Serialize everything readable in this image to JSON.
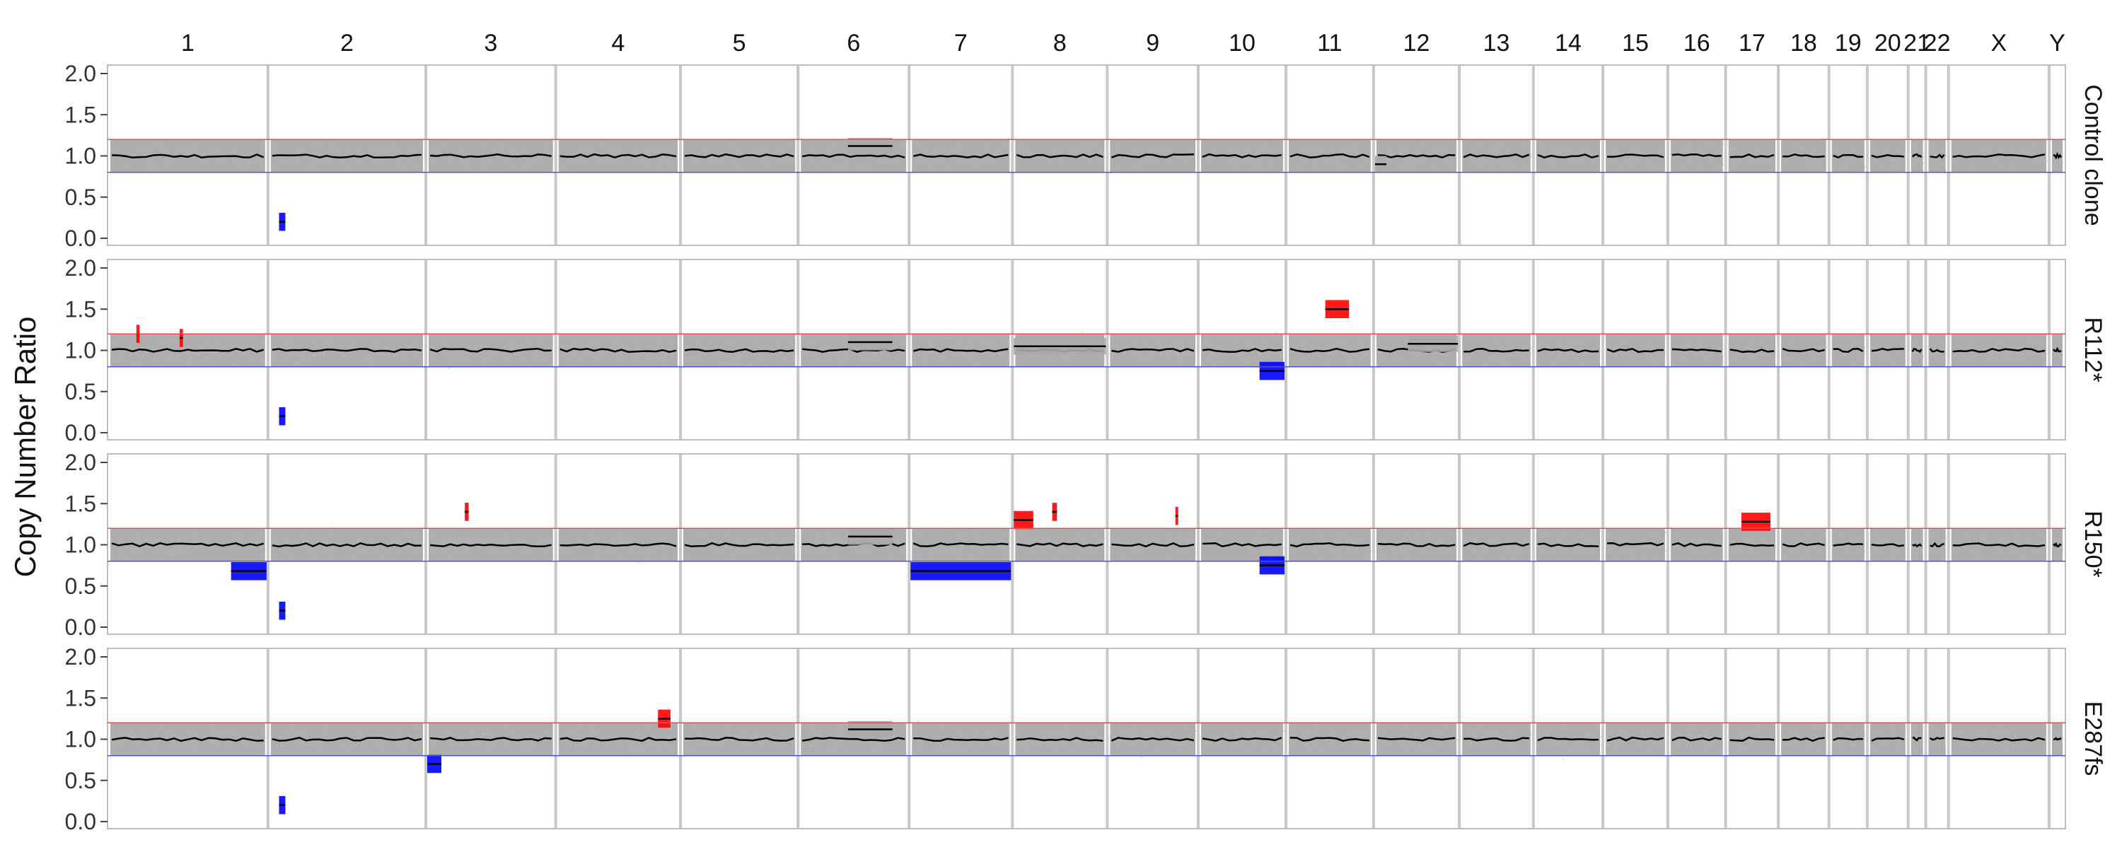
{
  "chart_data": {
    "type": "scatter",
    "ylabel": "Copy Number Ratio",
    "xlabel": "",
    "ylim": [
      0,
      2
    ],
    "yticks": [
      "0.0",
      "0.5",
      "1.0",
      "1.5",
      "2.0"
    ],
    "gain_threshold": 1.2,
    "loss_threshold": 0.8,
    "colors": {
      "gain": "#ff0000",
      "loss": "#0000ff",
      "neutral": "#aaaaaa",
      "segment": "#000000",
      "threshold_gain": "#e05050",
      "threshold_loss": "#5050e0",
      "separator": "#c8c8c8",
      "frame": "#bdbdbd"
    },
    "chromosomes": [
      {
        "label": "1",
        "bins": 247
      },
      {
        "label": "2",
        "bins": 243
      },
      {
        "label": "3",
        "bins": 200
      },
      {
        "label": "4",
        "bins": 192
      },
      {
        "label": "5",
        "bins": 181
      },
      {
        "label": "6",
        "bins": 171
      },
      {
        "label": "7",
        "bins": 159
      },
      {
        "label": "8",
        "bins": 146
      },
      {
        "label": "9",
        "bins": 140
      },
      {
        "label": "10",
        "bins": 135
      },
      {
        "label": "11",
        "bins": 135
      },
      {
        "label": "12",
        "bins": 132
      },
      {
        "label": "13",
        "bins": 114
      },
      {
        "label": "14",
        "bins": 107
      },
      {
        "label": "15",
        "bins": 100
      },
      {
        "label": "16",
        "bins": 89
      },
      {
        "label": "17",
        "bins": 81
      },
      {
        "label": "18",
        "bins": 78
      },
      {
        "label": "19",
        "bins": 59
      },
      {
        "label": "20",
        "bins": 63
      },
      {
        "label": "21",
        "bins": 27
      },
      {
        "label": "22",
        "bins": 35
      },
      {
        "label": "X",
        "bins": 155
      },
      {
        "label": "Y",
        "bins": 25
      }
    ],
    "series": [
      {
        "name": "Control clone",
        "segments": [
          {
            "chrom": "2",
            "start": 0.07,
            "end": 0.11,
            "value": 0.2,
            "type": "loss"
          },
          {
            "chrom": "6",
            "start": 0.45,
            "end": 0.85,
            "value": 1.12,
            "type": "neutral"
          },
          {
            "chrom": "12",
            "start": 0.0,
            "end": 0.15,
            "value": 0.9,
            "type": "neutral"
          }
        ]
      },
      {
        "name": "R112*",
        "segments": [
          {
            "chrom": "1",
            "start": 0.18,
            "end": 0.2,
            "value": 1.2,
            "type": "gain"
          },
          {
            "chrom": "1",
            "start": 0.45,
            "end": 0.47,
            "value": 1.15,
            "type": "gain"
          },
          {
            "chrom": "2",
            "start": 0.07,
            "end": 0.11,
            "value": 0.2,
            "type": "loss"
          },
          {
            "chrom": "6",
            "start": 0.45,
            "end": 0.85,
            "value": 1.1,
            "type": "neutral"
          },
          {
            "chrom": "8",
            "start": 0.0,
            "end": 1.0,
            "value": 1.05,
            "type": "neutral"
          },
          {
            "chrom": "10",
            "start": 0.7,
            "end": 1.0,
            "value": 0.75,
            "type": "loss"
          },
          {
            "chrom": "11",
            "start": 0.45,
            "end": 0.72,
            "value": 1.5,
            "type": "gain"
          },
          {
            "chrom": "12",
            "start": 0.4,
            "end": 1.0,
            "value": 1.08,
            "type": "neutral"
          }
        ]
      },
      {
        "name": "R150*",
        "segments": [
          {
            "chrom": "1",
            "start": 0.77,
            "end": 1.0,
            "value": 0.68,
            "type": "loss"
          },
          {
            "chrom": "2",
            "start": 0.07,
            "end": 0.11,
            "value": 0.2,
            "type": "loss"
          },
          {
            "chrom": "3",
            "start": 0.3,
            "end": 0.33,
            "value": 1.4,
            "type": "gain"
          },
          {
            "chrom": "6",
            "start": 0.45,
            "end": 0.85,
            "value": 1.1,
            "type": "neutral"
          },
          {
            "chrom": "7",
            "start": 0.0,
            "end": 1.0,
            "value": 0.68,
            "type": "loss"
          },
          {
            "chrom": "8",
            "start": 0.0,
            "end": 0.22,
            "value": 1.3,
            "type": "gain"
          },
          {
            "chrom": "8",
            "start": 0.42,
            "end": 0.47,
            "value": 1.4,
            "type": "gain"
          },
          {
            "chrom": "9",
            "start": 0.75,
            "end": 0.78,
            "value": 1.35,
            "type": "gain"
          },
          {
            "chrom": "10",
            "start": 0.7,
            "end": 1.0,
            "value": 0.75,
            "type": "loss"
          },
          {
            "chrom": "17",
            "start": 0.3,
            "end": 0.85,
            "value": 1.28,
            "type": "gain"
          }
        ]
      },
      {
        "name": "E287fs",
        "segments": [
          {
            "chrom": "2",
            "start": 0.07,
            "end": 0.11,
            "value": 0.2,
            "type": "loss"
          },
          {
            "chrom": "3",
            "start": 0.0,
            "end": 0.12,
            "value": 0.7,
            "type": "loss"
          },
          {
            "chrom": "4",
            "start": 0.82,
            "end": 0.92,
            "value": 1.25,
            "type": "gain"
          },
          {
            "chrom": "6",
            "start": 0.45,
            "end": 0.85,
            "value": 1.12,
            "type": "neutral"
          }
        ]
      }
    ],
    "grid": false,
    "legend": "none"
  }
}
